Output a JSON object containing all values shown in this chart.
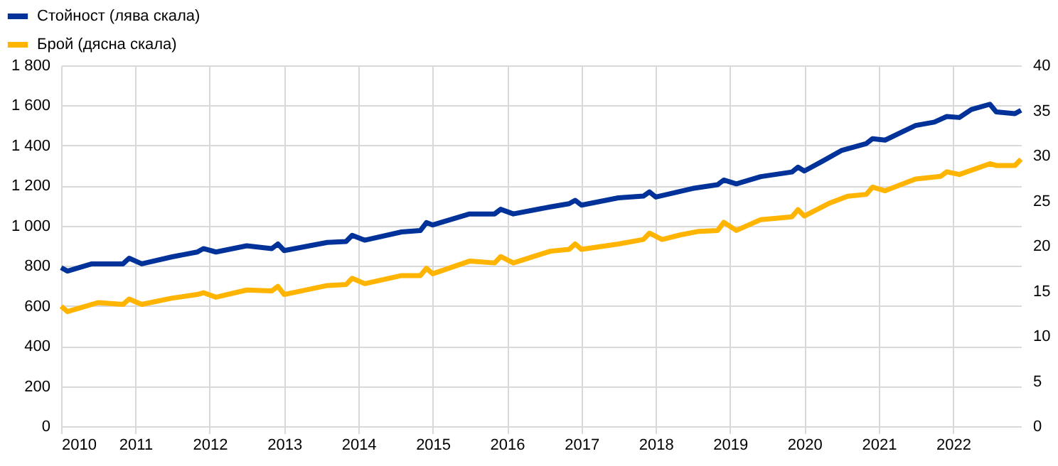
{
  "chart_data": {
    "type": "line",
    "legend": "top left",
    "grid": true,
    "line_style": "solid",
    "marker": "none",
    "xlim": [
      "2010-01",
      "2022-12"
    ],
    "xticks": [
      "2010",
      "2011",
      "2012",
      "2013",
      "2014",
      "2015",
      "2016",
      "2017",
      "2018",
      "2019",
      "2020",
      "2021",
      "2022"
    ],
    "ylim": [
      0,
      1800
    ],
    "yticks": [
      0,
      200,
      400,
      600,
      800,
      {
        "value": 1000,
        "label": "1 000"
      },
      {
        "value": 1200,
        "label": "1 200"
      },
      {
        "value": 1400,
        "label": "1 400"
      },
      {
        "value": 1600,
        "label": "1 600"
      },
      {
        "value": 1800,
        "label": "1 800"
      }
    ],
    "y2lim": [
      0,
      40
    ],
    "y2ticks": [
      0,
      5,
      10,
      15,
      20,
      25,
      30,
      35,
      40
    ],
    "series": [
      {
        "name": "Стойност (лява скала)",
        "color": "#003299",
        "axis": "y",
        "x": [
          "2010-01",
          "2010-02",
          "2010-06",
          "2010-11",
          "2010-12",
          "2011-02",
          "2011-07",
          "2011-11",
          "2011-12",
          "2012-02",
          "2012-07",
          "2012-11",
          "2012-12",
          "2013-01",
          "2013-08",
          "2013-11",
          "2013-12",
          "2014-02",
          "2014-08",
          "2014-11",
          "2014-12",
          "2015-01",
          "2015-07",
          "2015-11",
          "2015-12",
          "2016-02",
          "2016-08",
          "2016-11",
          "2016-12",
          "2017-01",
          "2017-07",
          "2017-11",
          "2017-12",
          "2018-01",
          "2018-07",
          "2018-11",
          "2018-12",
          "2019-02",
          "2019-06",
          "2019-11",
          "2019-12",
          "2020-01",
          "2020-04",
          "2020-07",
          "2020-11",
          "2020-12",
          "2021-02",
          "2021-07",
          "2021-10",
          "2021-12",
          "2022-02",
          "2022-04",
          "2022-07",
          "2022-08",
          "2022-11",
          "2022-12"
        ],
        "values": [
          791,
          774,
          810,
          810,
          838,
          810,
          845,
          869,
          886,
          869,
          900,
          886,
          909,
          876,
          917,
          921,
          952,
          928,
          969,
          976,
          1016,
          1004,
          1059,
          1059,
          1082,
          1059,
          1094,
          1110,
          1127,
          1103,
          1139,
          1148,
          1169,
          1143,
          1186,
          1205,
          1228,
          1209,
          1245,
          1268,
          1292,
          1273,
          1323,
          1375,
          1410,
          1434,
          1427,
          1500,
          1517,
          1545,
          1540,
          1580,
          1606,
          1568,
          1559,
          1576
        ]
      },
      {
        "name": "Брой (дясна скала)",
        "color": "#ffb400",
        "axis": "y2",
        "x": [
          "2010-01",
          "2010-02",
          "2010-05",
          "2010-07",
          "2010-11",
          "2010-12",
          "2011-02",
          "2011-07",
          "2011-11",
          "2011-12",
          "2012-02",
          "2012-07",
          "2012-11",
          "2012-12",
          "2013-01",
          "2013-08",
          "2013-11",
          "2013-12",
          "2014-02",
          "2014-08",
          "2014-11",
          "2014-12",
          "2015-01",
          "2015-07",
          "2015-11",
          "2015-12",
          "2016-02",
          "2016-08",
          "2016-11",
          "2016-12",
          "2017-01",
          "2017-07",
          "2017-11",
          "2017-12",
          "2018-02",
          "2018-05",
          "2018-08",
          "2018-11",
          "2018-12",
          "2019-02",
          "2019-06",
          "2019-11",
          "2019-12",
          "2020-01",
          "2020-05",
          "2020-08",
          "2020-11",
          "2020-12",
          "2021-02",
          "2021-07",
          "2021-11",
          "2021-12",
          "2022-02",
          "2022-07",
          "2022-08",
          "2022-11",
          "2022-12"
        ],
        "values": [
          13.3,
          12.7,
          13.3,
          13.7,
          13.5,
          14.1,
          13.5,
          14.2,
          14.6,
          14.8,
          14.3,
          15.1,
          15.0,
          15.5,
          14.6,
          15.6,
          15.7,
          16.4,
          15.8,
          16.7,
          16.7,
          17.5,
          16.9,
          18.3,
          18.1,
          18.8,
          18.1,
          19.4,
          19.6,
          20.2,
          19.6,
          20.2,
          20.7,
          21.4,
          20.7,
          21.2,
          21.6,
          21.7,
          22.6,
          21.7,
          22.9,
          23.2,
          24.0,
          23.3,
          24.7,
          25.5,
          25.7,
          26.5,
          26.1,
          27.4,
          27.7,
          28.2,
          27.9,
          29.1,
          28.9,
          28.9,
          29.6
        ]
      }
    ]
  }
}
